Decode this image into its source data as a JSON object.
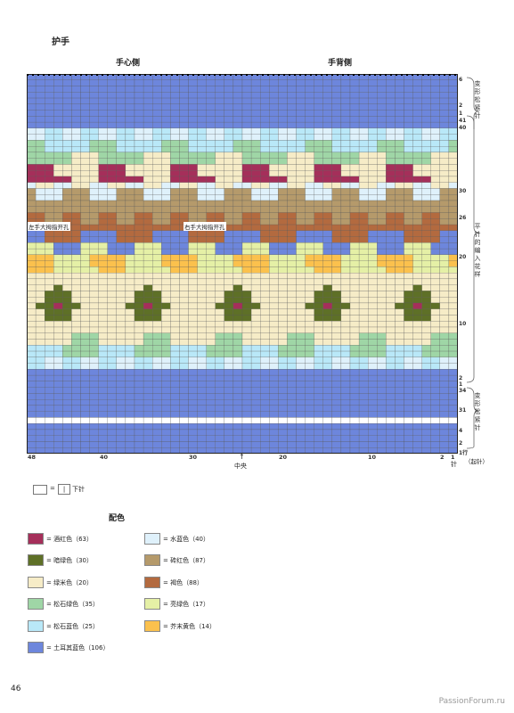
{
  "title": "护手",
  "headers": {
    "palm": "手心侧",
    "back": "手背侧"
  },
  "row_labels": [
    {
      "text": "6"
    },
    {
      "text": "2"
    },
    {
      "text": "1"
    },
    {
      "text": "41"
    },
    {
      "text": "40"
    },
    {
      "text": "30"
    },
    {
      "text": "26"
    },
    {
      "text": "20"
    },
    {
      "text": "10"
    },
    {
      "text": "2"
    },
    {
      "text": "1"
    },
    {
      "text": "34"
    },
    {
      "text": "31"
    },
    {
      "text": "4"
    },
    {
      "text": "2"
    },
    {
      "text": "1行"
    }
  ],
  "col_labels": [
    "48",
    "40",
    "30",
    "20",
    "10",
    "2",
    "1"
  ],
  "center_label": "中央",
  "stitch_label": "针",
  "side_labels": {
    "top": "变形松紧针",
    "middle": "平针的编入花样",
    "bottom": "变形松紧针",
    "cast_on": "（起针）"
  },
  "thumb_notes": [
    "左手大拇指开孔",
    "右手大拇指开孔"
  ],
  "key": {
    "equals": "=",
    "symbol": "|",
    "text": "下针"
  },
  "color_title": "配色",
  "colors": [
    {
      "label": "= 酒红色（63）",
      "hex": "#a52f5a"
    },
    {
      "label": "= 水蓝色（40）",
      "hex": "#dff1fb"
    },
    {
      "label": "= 暗绿色（30）",
      "hex": "#5e7027"
    },
    {
      "label": "= 砖红色（87）",
      "hex": "#b59a6b"
    },
    {
      "label": "= 绿米色（20）",
      "hex": "#f6ecc7"
    },
    {
      "label": "= 褐色（88）",
      "hex": "#b36a3f"
    },
    {
      "label": "= 松石绿色（35）",
      "hex": "#9fd6a6"
    },
    {
      "label": "= 亮绿色（17）",
      "hex": "#e5f0a6"
    },
    {
      "label": "= 松石蓝色（25）",
      "hex": "#b9e8f8"
    },
    {
      "label": "= 芥末黄色（14）",
      "hex": "#fbc14d"
    },
    {
      "label": "= 土耳其蓝色（106）",
      "hex": "#6d86dc"
    }
  ],
  "page_number": "46",
  "watermark": "PassionForum.ru"
}
